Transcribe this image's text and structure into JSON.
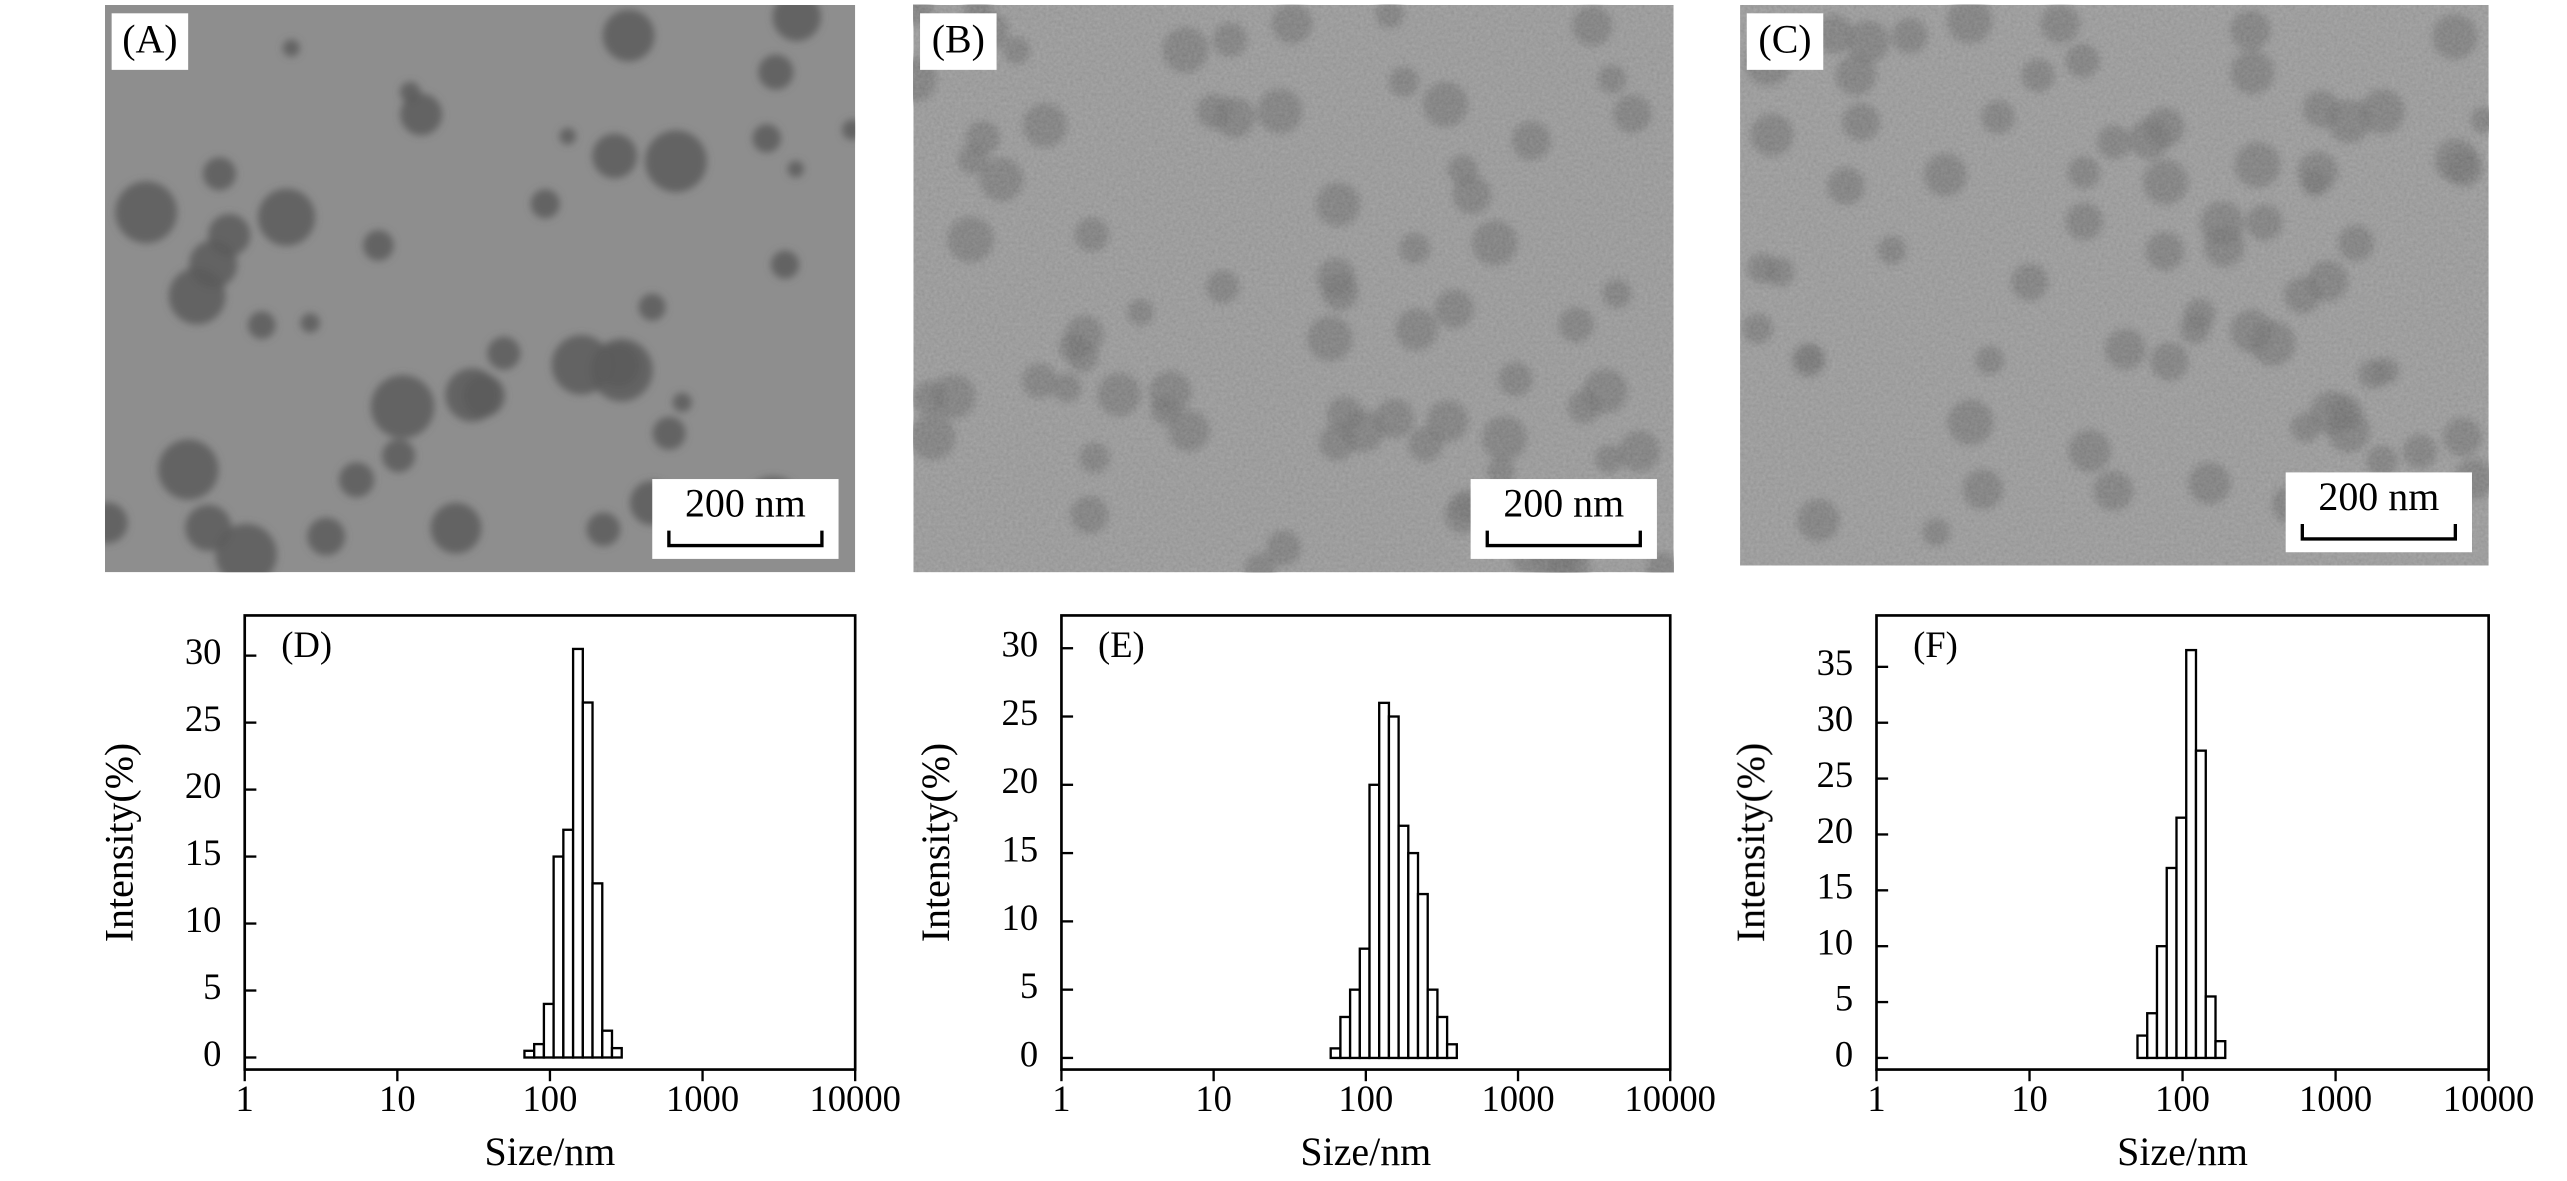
{
  "images": [
    {
      "label": "(A)",
      "scale_bar": "200 nm"
    },
    {
      "label": "(B)",
      "scale_bar": "200 nm"
    },
    {
      "label": "(C)",
      "scale_bar": "200 nm"
    }
  ],
  "chart_data": [
    {
      "type": "histogram",
      "annotation": "(D)",
      "xlabel": "Size/nm",
      "ylabel": "Intensity(%)",
      "xscale": "log",
      "bins": [
        68.06,
        78.82,
        91.28,
        105.7,
        122.4,
        141.8,
        164.2,
        190.1,
        220.2,
        255.0,
        295.3
      ],
      "values": [
        0.5,
        1,
        4,
        15,
        17,
        30.5,
        26.5,
        13,
        2,
        0.7
      ],
      "xlim": [
        1,
        10000
      ],
      "xticks": [
        1,
        10,
        100,
        1000,
        10000
      ],
      "ylim": [
        -0.9,
        33
      ],
      "yticks": [
        0,
        5,
        10,
        15,
        20,
        25,
        30
      ],
      "color": "#ffffff",
      "edgecolor": "#000000"
    },
    {
      "type": "histogram",
      "annotation": "(E)",
      "xlabel": "Size/nm",
      "ylabel": "Intensity(%)",
      "xscale": "log",
      "bins": [
        58.77,
        68.06,
        78.82,
        91.28,
        105.7,
        122.4,
        141.8,
        164.2,
        190.1,
        220.2,
        255.0,
        295.3,
        342.0,
        396.0
      ],
      "values": [
        0.7,
        3,
        5,
        8,
        20,
        26,
        25,
        17,
        15,
        12,
        5,
        3,
        1
      ],
      "xlim": [
        1,
        10000
      ],
      "xticks": [
        1,
        10,
        100,
        1000,
        10000
      ],
      "ylim": [
        -0.85,
        32.4
      ],
      "yticks": [
        0,
        5,
        10,
        15,
        20,
        25,
        30
      ],
      "color": "#ffffff",
      "edgecolor": "#000000"
    },
    {
      "type": "histogram",
      "annotation": "(F)",
      "xlabel": "Size/nm",
      "ylabel": "Intensity(%)",
      "xscale": "log",
      "bins": [
        50.75,
        58.77,
        68.06,
        78.82,
        91.28,
        105.7,
        122.4,
        141.8,
        164.2,
        190.1
      ],
      "values": [
        2,
        4,
        10,
        17,
        21.5,
        36.5,
        27.5,
        5.5,
        1.5
      ],
      "xlim": [
        1,
        10000
      ],
      "xticks": [
        1,
        10,
        100,
        1000,
        10000
      ],
      "ylim": [
        -1.04,
        39.6
      ],
      "yticks": [
        0,
        5,
        10,
        15,
        20,
        25,
        30,
        35
      ],
      "color": "#ffffff",
      "edgecolor": "#000000"
    }
  ]
}
